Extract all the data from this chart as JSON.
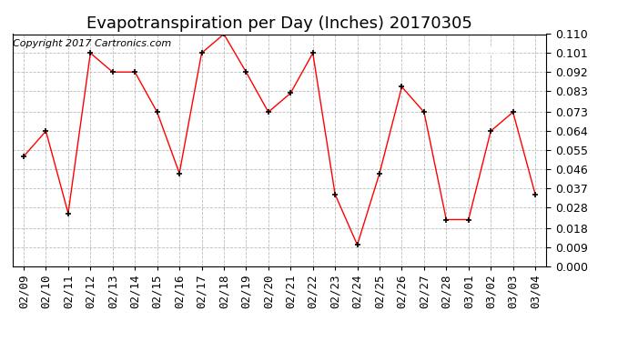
{
  "title": "Evapotranspiration per Day (Inches) 20170305",
  "copyright": "Copyright 2017 Cartronics.com",
  "legend_bg": "#ff0000",
  "legend_fg": "#ffffff",
  "dates": [
    "02/09",
    "02/10",
    "02/11",
    "02/12",
    "02/13",
    "02/14",
    "02/15",
    "02/16",
    "02/17",
    "02/18",
    "02/19",
    "02/20",
    "02/21",
    "02/22",
    "02/23",
    "02/24",
    "02/25",
    "02/26",
    "02/27",
    "02/28",
    "03/01",
    "03/02",
    "03/03",
    "03/04"
  ],
  "values": [
    0.052,
    0.064,
    0.025,
    0.101,
    0.092,
    0.092,
    0.073,
    0.044,
    0.101,
    0.11,
    0.092,
    0.073,
    0.082,
    0.101,
    0.034,
    0.01,
    0.044,
    0.085,
    0.073,
    0.022,
    0.022,
    0.064,
    0.073,
    0.034
  ],
  "ylim": [
    0.0,
    0.11
  ],
  "yticks": [
    0.0,
    0.009,
    0.018,
    0.028,
    0.037,
    0.046,
    0.055,
    0.064,
    0.073,
    0.083,
    0.092,
    0.101,
    0.11
  ],
  "line_color": "#ff0000",
  "marker_color": "#000000",
  "bg_color": "#ffffff",
  "grid_color": "#aaaaaa",
  "title_fontsize": 13,
  "copyright_fontsize": 8,
  "tick_fontsize": 9
}
